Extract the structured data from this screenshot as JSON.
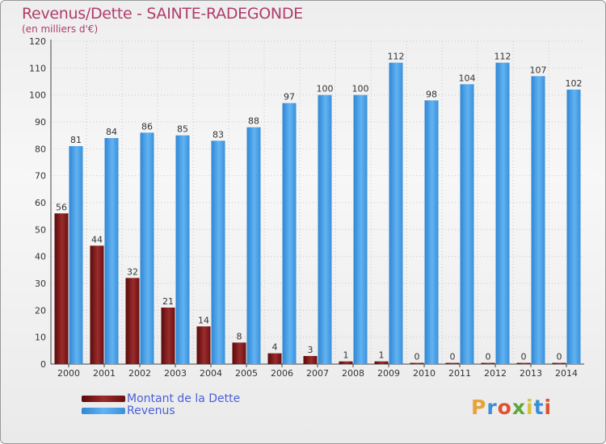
{
  "title": "Revenus/Dette - SAINTE-RADEGONDE",
  "subtitle": "(en milliers d'€)",
  "chart_data": {
    "type": "bar",
    "categories": [
      "2000",
      "2001",
      "2002",
      "2003",
      "2004",
      "2005",
      "2006",
      "2007",
      "2008",
      "2009",
      "2010",
      "2011",
      "2012",
      "2013",
      "2014"
    ],
    "series": [
      {
        "name": "Montant de la Dette",
        "color": "#8b1a1a",
        "values": [
          56,
          44,
          32,
          21,
          14,
          8,
          4,
          3,
          1,
          1,
          0,
          0,
          0,
          0,
          0
        ]
      },
      {
        "name": "Revenus",
        "color": "#3e95dd",
        "values": [
          81,
          84,
          86,
          85,
          83,
          88,
          97,
          100,
          100,
          112,
          98,
          104,
          112,
          107,
          102
        ]
      }
    ],
    "ylim": [
      0,
      120
    ],
    "yticks": [
      0,
      10,
      20,
      30,
      40,
      50,
      60,
      70,
      80,
      90,
      100,
      110,
      120
    ],
    "grid": true,
    "legend_position": "bottom-left"
  },
  "legend": [
    {
      "label": "Montant de la Dette",
      "color": "#7a1515"
    },
    {
      "label": "Revenus",
      "color": "#3e95dd"
    }
  ],
  "logo": {
    "chars": [
      "P",
      "r",
      "o",
      "x",
      "i",
      "t",
      "i"
    ],
    "colors": [
      "#e8a23a",
      "#3a8fd6",
      "#e0522e",
      "#5aa83a",
      "#d8c23a",
      "#3a8fd6",
      "#e0522e"
    ]
  }
}
